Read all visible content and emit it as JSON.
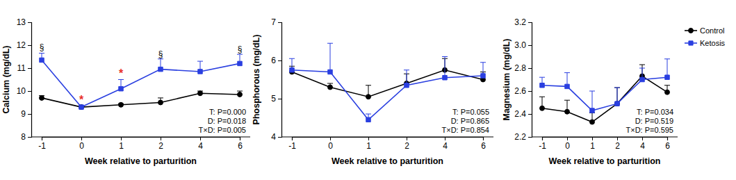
{
  "chart_data": [
    {
      "type": "line",
      "ylabel": "Calcium (mg/dL)",
      "xlabel": "Week relative to parturition",
      "categories": [
        "-1",
        "0",
        "1",
        "2",
        "4",
        "6"
      ],
      "ylim": [
        8,
        13
      ],
      "yticks": [
        8,
        9,
        10,
        11,
        12,
        13
      ],
      "series": [
        {
          "color": "#000000",
          "marker": "circle",
          "line_style": "solid",
          "values": [
            9.7,
            9.3,
            9.4,
            9.5,
            9.9,
            9.85
          ],
          "errors": [
            0.1,
            0.05,
            0.05,
            0.2,
            0.1,
            0.15
          ]
        },
        {
          "color": "#2a3fe0",
          "marker": "square",
          "line_style": "solid",
          "values": [
            11.35,
            9.3,
            10.1,
            10.95,
            10.85,
            11.2
          ],
          "errors": [
            0.3,
            0.05,
            0.4,
            0.45,
            0.45,
            0.4
          ]
        }
      ],
      "annotations": [
        {
          "text": "§",
          "x": "-1",
          "y": 11.8
        },
        {
          "text": "*",
          "x": "0",
          "y": 9.45,
          "color": "#e8312a"
        },
        {
          "text": "*",
          "x": "1",
          "y": 10.6,
          "color": "#e8312a"
        },
        {
          "text": "§",
          "x": "2",
          "y": 11.5
        },
        {
          "text": "§",
          "x": "6",
          "y": 11.7
        }
      ],
      "stats_text": [
        "T: P=0.000",
        "D: P=0.018",
        "T×D: P=0.005"
      ]
    },
    {
      "type": "line",
      "ylabel": "Phosphorous (mg/dL)",
      "xlabel": "Week relative to parturition",
      "categories": [
        "-1",
        "0",
        "1",
        "2",
        "4",
        "6"
      ],
      "ylim": [
        4,
        7
      ],
      "yticks": [
        4,
        5,
        6,
        7
      ],
      "series": [
        {
          "color": "#000000",
          "marker": "circle",
          "line_style": "solid",
          "values": [
            5.7,
            5.3,
            5.05,
            5.4,
            5.75,
            5.5
          ],
          "errors": [
            0.15,
            0.1,
            0.3,
            0.25,
            0.3,
            0.2
          ]
        },
        {
          "color": "#2a3fe0",
          "marker": "square",
          "line_style": "solid",
          "values": [
            5.75,
            5.7,
            4.45,
            5.35,
            5.55,
            5.6
          ],
          "errors": [
            0.3,
            0.75,
            0.15,
            0.4,
            0.55,
            0.35
          ]
        }
      ],
      "stats_text": [
        "T: P=0.055",
        "D: P=0.865",
        "T×D: P=0.854"
      ]
    },
    {
      "type": "line",
      "ylabel": "Magnesium (mg/dL)",
      "xlabel": "Week relative to parturition",
      "categories": [
        "-1",
        "0",
        "1",
        "2",
        "4",
        "6"
      ],
      "ylim": [
        2.2,
        3.2
      ],
      "yticks": [
        2.2,
        2.4,
        2.6,
        2.8,
        {
          "value": 3,
          "label": "3.0"
        },
        3.2
      ],
      "legend": "right",
      "series": [
        {
          "name": "Control",
          "color": "#000000",
          "marker": "circle",
          "line_style": "solid",
          "values": [
            2.45,
            2.42,
            2.33,
            2.49,
            2.73,
            2.59
          ],
          "errors": [
            0.1,
            0.1,
            0.08,
            0.14,
            0.1,
            0.06
          ]
        },
        {
          "name": "Ketosis",
          "color": "#2a3fe0",
          "marker": "square",
          "line_style": "solid",
          "values": [
            2.65,
            2.64,
            2.43,
            2.49,
            2.7,
            2.72
          ],
          "errors": [
            0.07,
            0.12,
            0.17,
            0.14,
            0.1,
            0.16
          ]
        }
      ],
      "stats_text": [
        "T: P=0.034",
        "D: P=0.519",
        "T×D: P=0.595"
      ]
    }
  ]
}
